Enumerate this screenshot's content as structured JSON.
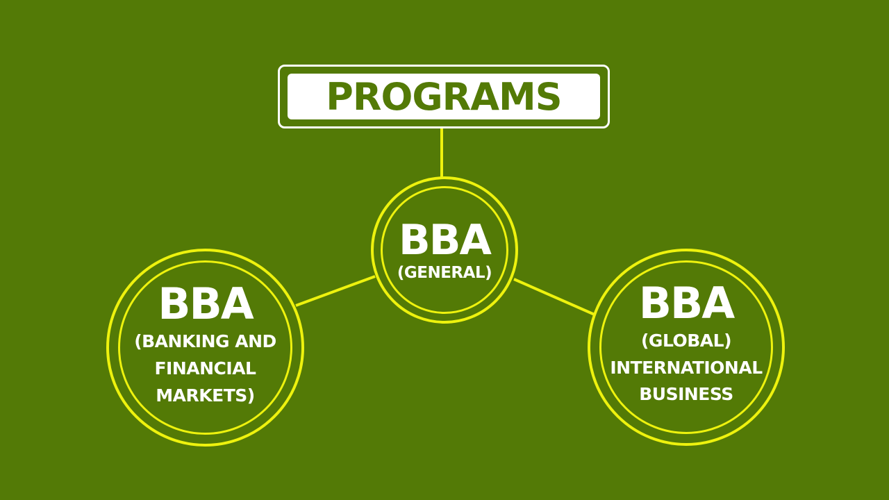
{
  "colors": {
    "background": "#537a06",
    "accent_ring": "#eef20e",
    "title_box": "#ffffff",
    "text": "#ffffff"
  },
  "header": {
    "title": "PROGRAMS"
  },
  "nodes": {
    "general": {
      "title": "BBA",
      "lines": [
        "(GENERAL)"
      ]
    },
    "banking": {
      "title": "BBA",
      "lines": [
        "(BANKING AND",
        "FINANCIAL",
        "MARKETS)"
      ]
    },
    "global": {
      "title": "BBA",
      "lines": [
        "(GLOBAL)",
        "INTERNATIONAL",
        "BUSINESS"
      ]
    }
  }
}
